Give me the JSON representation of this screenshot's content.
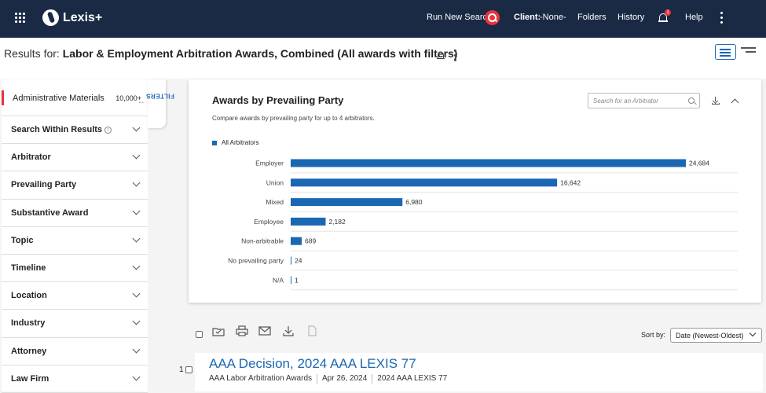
{
  "topbar": {
    "logo": "Lexis+",
    "run_new_search": "Run New Search",
    "client_label": "Client:",
    "client_value": "-None-",
    "folders": "Folders",
    "history": "History",
    "notif_count": "1",
    "help": "Help"
  },
  "subheader": {
    "results_prefix": "Results for:",
    "results_query": "Labor & Employment Arbitration Awards, Combined (All awards with filters)"
  },
  "sidebar": {
    "admin_label": "Administrative Materials",
    "admin_count": "10,000+",
    "items": [
      "Search Within Results",
      "Arbitrator",
      "Prevailing Party",
      "Substantive Award",
      "Topic",
      "Timeline",
      "Location",
      "Industry",
      "Attorney",
      "Law Firm"
    ],
    "filters_tab": "FILTERS"
  },
  "panel": {
    "title": "Awards by Prevailing Party",
    "subtitle": "Compare awards by prevailing party for up to 4 arbitrators.",
    "search_placeholder": "Search for an Arbitrator",
    "legend": "All Arbitrators"
  },
  "chart_data": {
    "type": "bar",
    "orientation": "horizontal",
    "categories": [
      "Employer",
      "Union",
      "Mixed",
      "Employee",
      "Non-arbitrable",
      "No prevailing party",
      "N/A"
    ],
    "series": [
      {
        "name": "All Arbitrators",
        "values": [
          24684,
          16642,
          6980,
          2182,
          689,
          24,
          1
        ]
      }
    ],
    "value_labels": [
      "24,684",
      "16,642",
      "6,980",
      "2,182",
      "689",
      "24",
      "1"
    ],
    "color": "#1b67b3",
    "grid": true
  },
  "toolbar": {
    "sort_label": "Sort by:",
    "sort_value": "Date (Newest-Oldest)"
  },
  "result": {
    "number": "1",
    "title": "AAA Decision, 2024 AAA LEXIS 77",
    "source": "AAA Labor Arbitration Awards",
    "date": "Apr 26, 2024",
    "cite": "2024 AAA LEXIS 77"
  }
}
